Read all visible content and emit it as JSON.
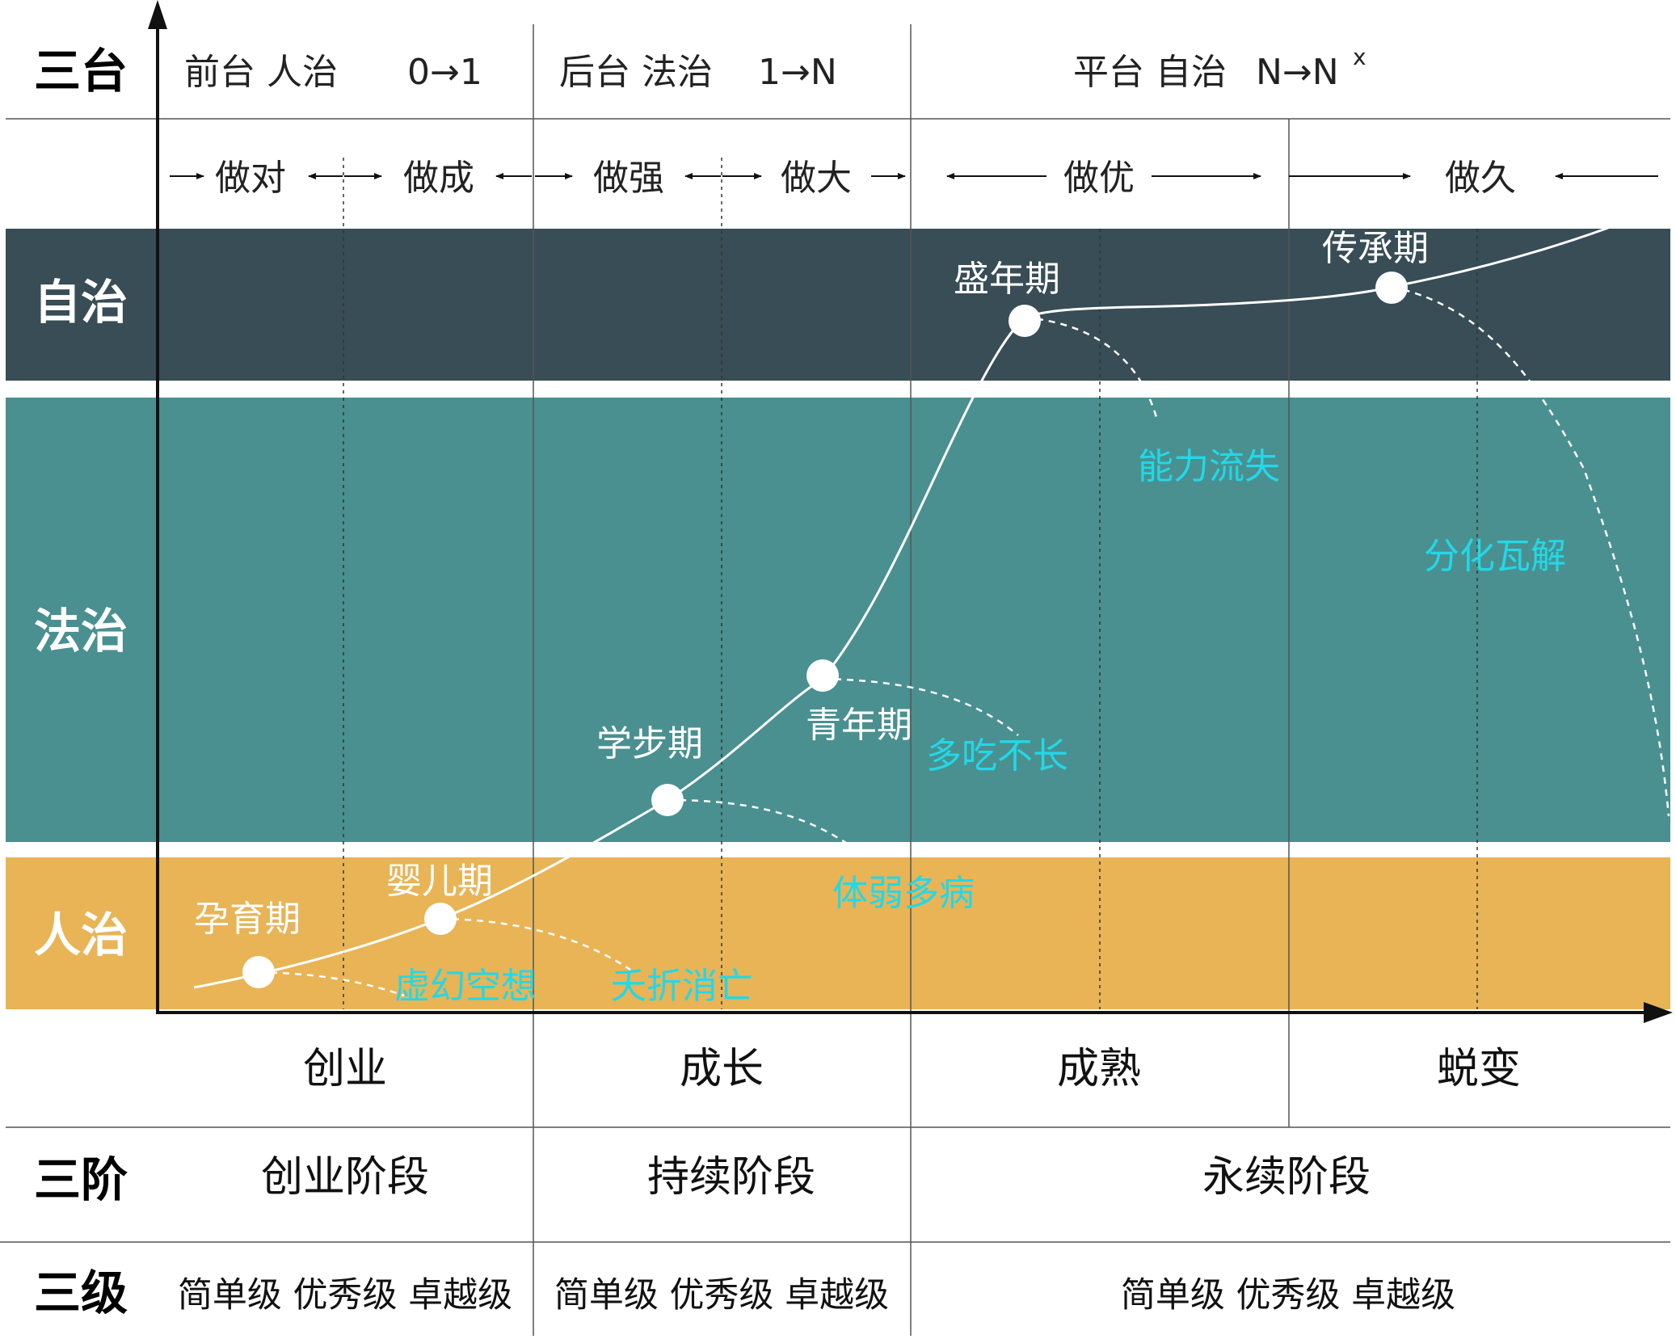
{
  "row_labels": {
    "platform": "三台",
    "phase": "三阶",
    "level": "三级"
  },
  "bands": [
    {
      "key": "autonomy",
      "label": "自治",
      "color": "#384d55"
    },
    {
      "key": "law",
      "label": "法治",
      "color": "#4a9090"
    },
    {
      "key": "people",
      "label": "人治",
      "color": "#e8b456"
    }
  ],
  "platforms": [
    {
      "name": "前台 人治",
      "ratio": "0→1"
    },
    {
      "name": "后台 法治",
      "ratio": "1→N"
    },
    {
      "name": "平台 自治",
      "ratio": "N→N",
      "superscript": "x"
    }
  ],
  "steps": [
    "做对",
    "做成",
    "做强",
    "做大",
    "做优",
    "做久"
  ],
  "stages": [
    "创业",
    "成长",
    "成熟",
    "蜕变"
  ],
  "phases": [
    "创业阶段",
    "持续阶段",
    "永续阶段"
  ],
  "levels": [
    "简单级 优秀级 卓越级",
    "简单级 优秀级 卓越级",
    "简单级 优秀级 卓越级"
  ],
  "lifecycle_nodes": [
    {
      "name": "孕育期",
      "risk": "虚幻空想"
    },
    {
      "name": "婴儿期",
      "risk": "夭折消亡"
    },
    {
      "name": "学步期",
      "risk": "体弱多病"
    },
    {
      "name": "青年期",
      "risk": "多吃不长"
    },
    {
      "name": "盛年期",
      "risk": "能力流失"
    },
    {
      "name": "传承期",
      "risk": "分化瓦解"
    }
  ],
  "colors": {
    "curve": "#ffffff",
    "risk_text": "#22d8e8",
    "grid": "#555555"
  }
}
